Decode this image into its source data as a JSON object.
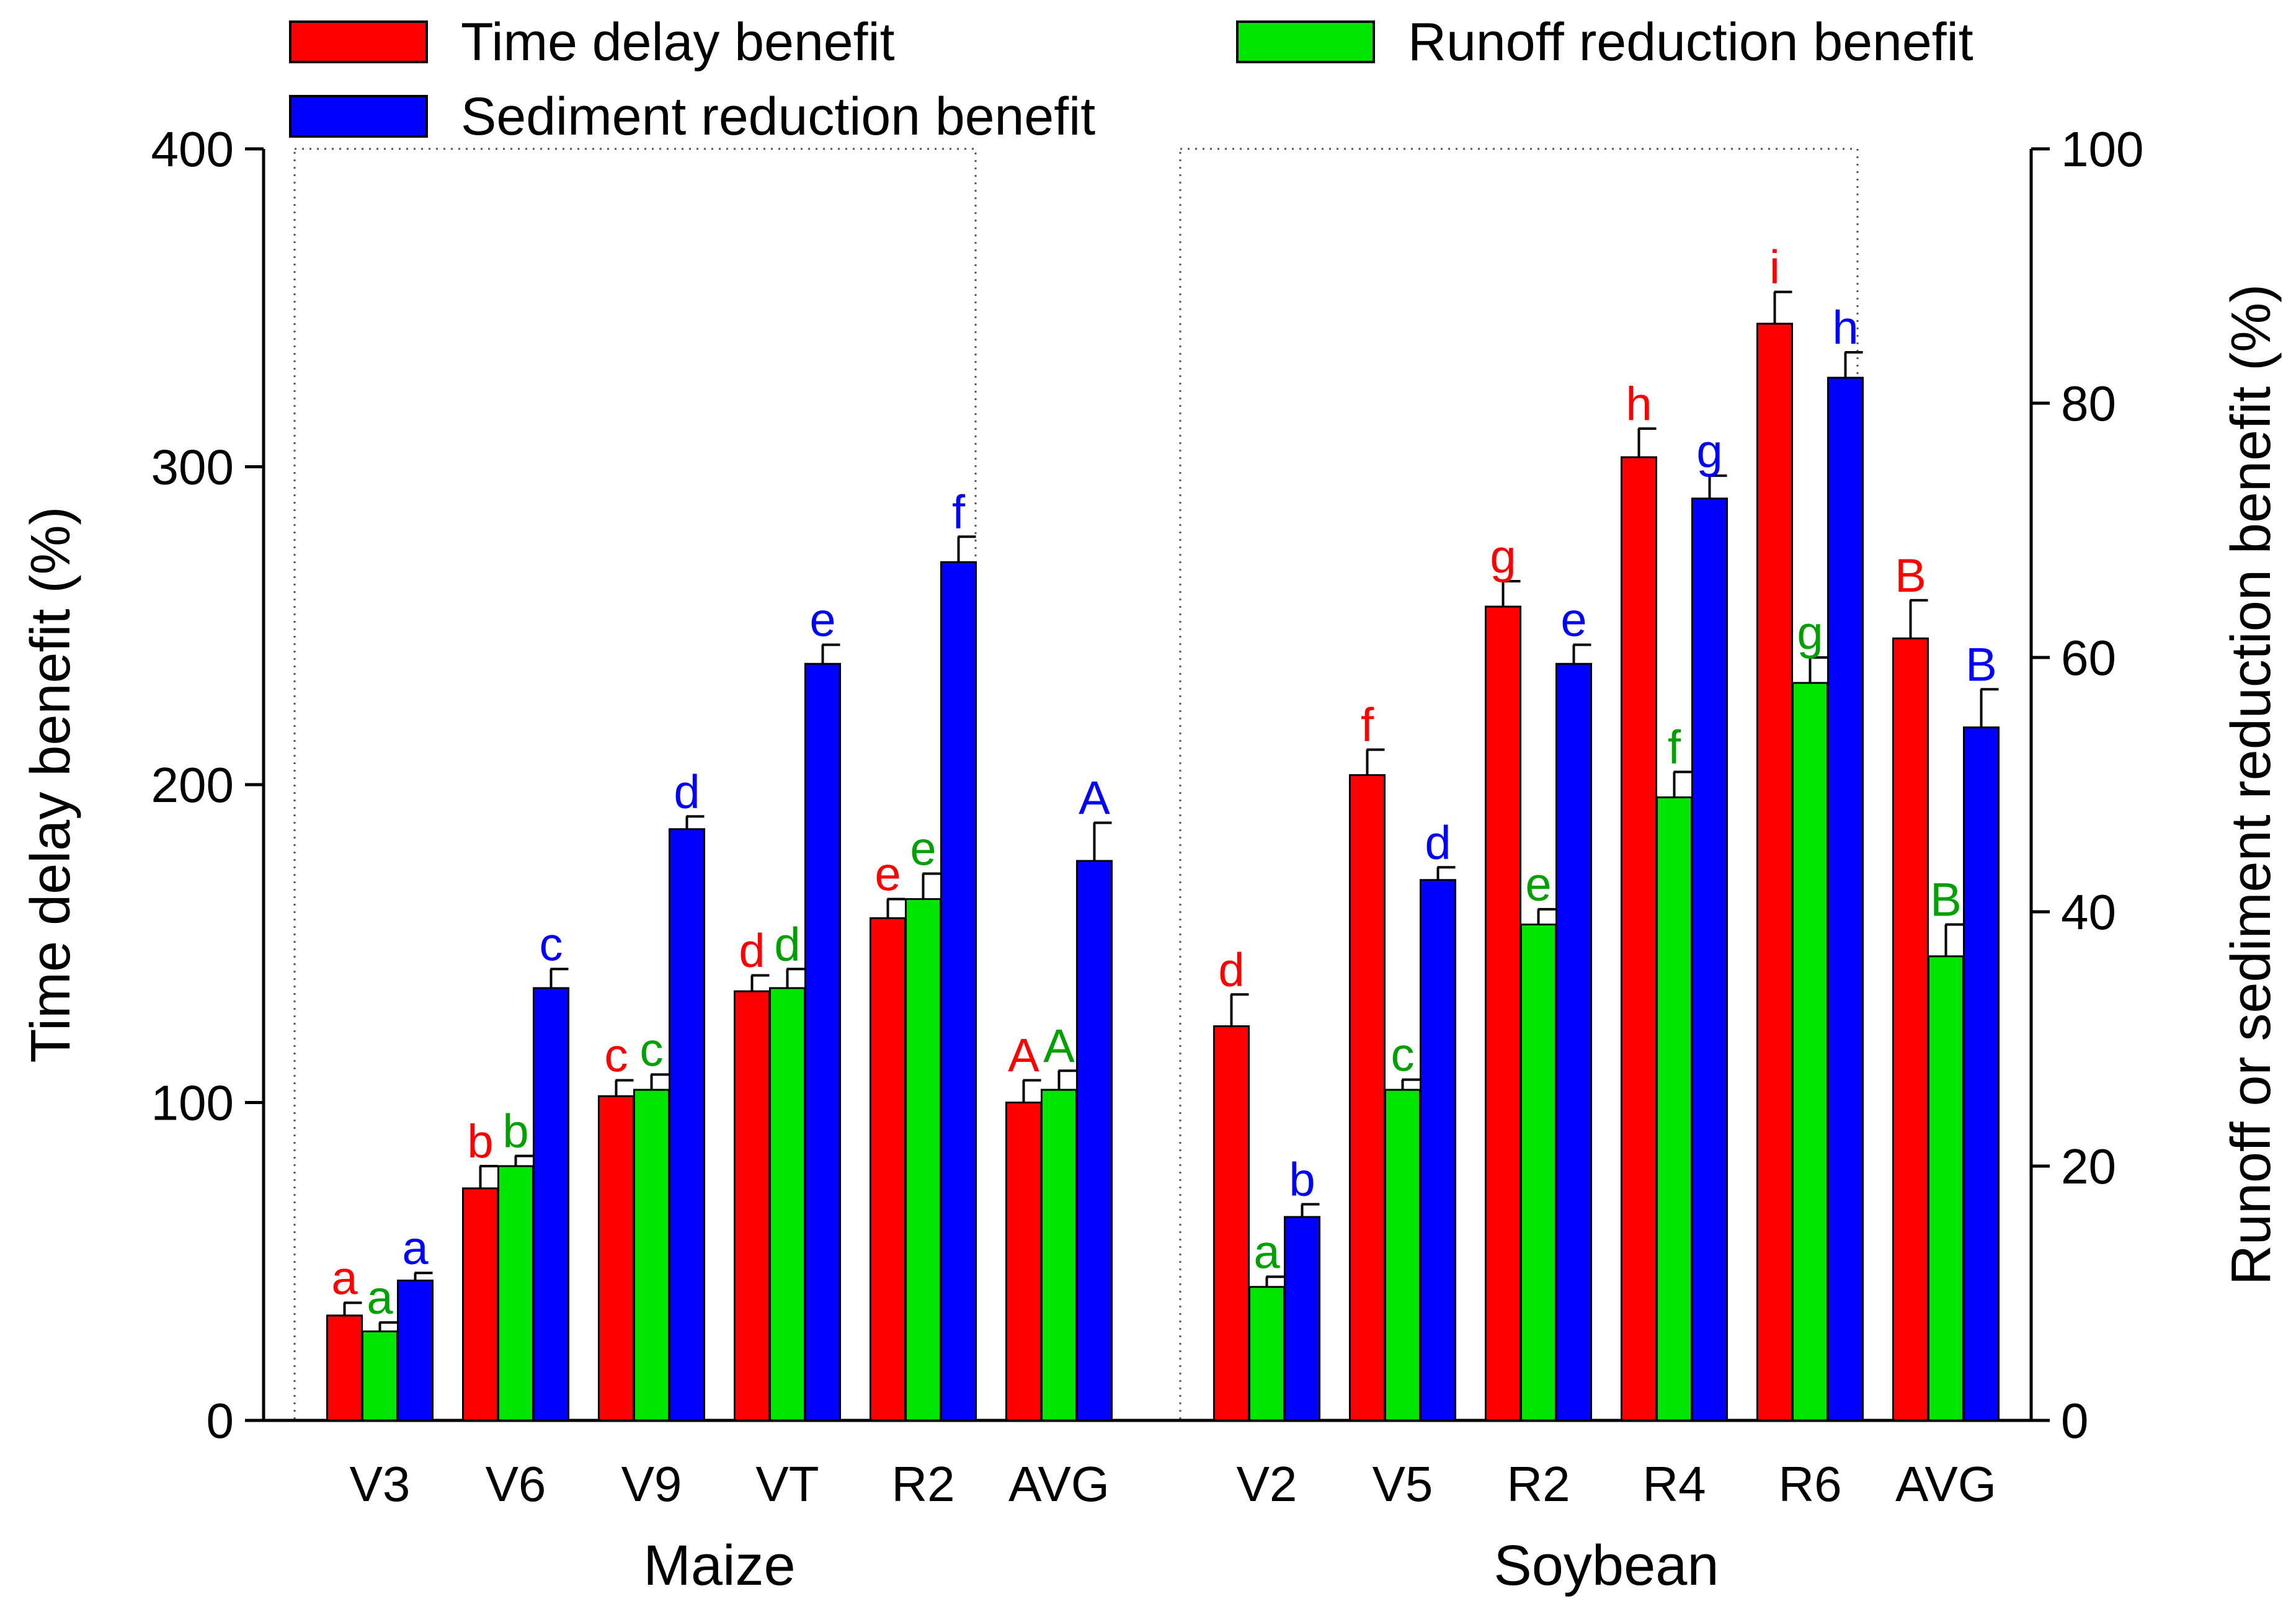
{
  "chart_data": {
    "type": "bar",
    "series": [
      {
        "key": "time",
        "name": "Time delay benefit",
        "color": "#ff0000",
        "axis": "left"
      },
      {
        "key": "runoff",
        "name": "Runoff reduction benefit",
        "color": "#00e600",
        "axis": "right"
      },
      {
        "key": "sediment",
        "name": "Sediment reduction benefit",
        "color": "#0000ff",
        "axis": "right"
      }
    ],
    "yleft": {
      "label": "Time delay benefit (%)",
      "ylim": [
        0,
        400
      ],
      "ticks": [
        0,
        100,
        200,
        300,
        400
      ]
    },
    "yright": {
      "label": "Runoff or sediment reduction benefit (%)",
      "ylim": [
        0,
        100
      ],
      "ticks": [
        0,
        20,
        40,
        60,
        80,
        100
      ]
    },
    "groups": [
      {
        "name": "Maize",
        "stages": [
          {
            "label": "V3",
            "time": {
              "v": 33,
              "e": 4,
              "sig": "a"
            },
            "runoff": {
              "v": 7,
              "e": 0.7,
              "sig": "a"
            },
            "sediment": {
              "v": 11,
              "e": 0.6,
              "sig": "a"
            }
          },
          {
            "label": "V6",
            "time": {
              "v": 73,
              "e": 7,
              "sig": "b"
            },
            "runoff": {
              "v": 20,
              "e": 0.8,
              "sig": "b"
            },
            "sediment": {
              "v": 34,
              "e": 1.5,
              "sig": "c"
            }
          },
          {
            "label": "V9",
            "time": {
              "v": 102,
              "e": 5,
              "sig": "c"
            },
            "runoff": {
              "v": 26,
              "e": 1.2,
              "sig": "c"
            },
            "sediment": {
              "v": 46.5,
              "e": 1.0,
              "sig": "d"
            }
          },
          {
            "label": "VT",
            "time": {
              "v": 135,
              "e": 5,
              "sig": "d"
            },
            "runoff": {
              "v": 34,
              "e": 1.5,
              "sig": "d"
            },
            "sediment": {
              "v": 59.5,
              "e": 1.5,
              "sig": "e"
            }
          },
          {
            "label": "R2",
            "time": {
              "v": 158,
              "e": 6,
              "sig": "e"
            },
            "runoff": {
              "v": 41,
              "e": 2,
              "sig": "e"
            },
            "sediment": {
              "v": 67.5,
              "e": 2,
              "sig": "f"
            }
          },
          {
            "label": "AVG",
            "time": {
              "v": 100,
              "e": 7,
              "sig": "A"
            },
            "runoff": {
              "v": 26,
              "e": 1.5,
              "sig": "A"
            },
            "sediment": {
              "v": 44,
              "e": 3,
              "sig": "A"
            }
          }
        ]
      },
      {
        "name": "Soybean",
        "stages": [
          {
            "label": "V2",
            "time": {
              "v": 124,
              "e": 10,
              "sig": "d"
            },
            "runoff": {
              "v": 10.5,
              "e": 0.8,
              "sig": "a"
            },
            "sediment": {
              "v": 16,
              "e": 1.0,
              "sig": "b"
            }
          },
          {
            "label": "V5",
            "time": {
              "v": 203,
              "e": 8,
              "sig": "f"
            },
            "runoff": {
              "v": 26,
              "e": 0.8,
              "sig": "c"
            },
            "sediment": {
              "v": 42.5,
              "e": 1.0,
              "sig": "d"
            }
          },
          {
            "label": "R2",
            "time": {
              "v": 256,
              "e": 8,
              "sig": "g"
            },
            "runoff": {
              "v": 39,
              "e": 1.2,
              "sig": "e"
            },
            "sediment": {
              "v": 59.5,
              "e": 1.5,
              "sig": "e"
            }
          },
          {
            "label": "R4",
            "time": {
              "v": 303,
              "e": 9,
              "sig": "h"
            },
            "runoff": {
              "v": 49,
              "e": 2,
              "sig": "f"
            },
            "sediment": {
              "v": 72.5,
              "e": 1.8,
              "sig": "g"
            }
          },
          {
            "label": "R6",
            "time": {
              "v": 345,
              "e": 10,
              "sig": "i"
            },
            "runoff": {
              "v": 58,
              "e": 2,
              "sig": "g"
            },
            "sediment": {
              "v": 82,
              "e": 2,
              "sig": "h"
            }
          },
          {
            "label": "AVG",
            "time": {
              "v": 246,
              "e": 12,
              "sig": "B"
            },
            "runoff": {
              "v": 36.5,
              "e": 2.5,
              "sig": "B"
            },
            "sediment": {
              "v": 54.5,
              "e": 3,
              "sig": "B"
            }
          }
        ]
      }
    ],
    "legend": {
      "placement": "top"
    }
  }
}
